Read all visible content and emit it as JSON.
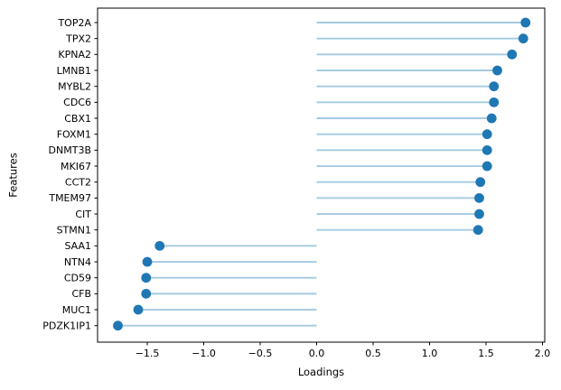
{
  "figure": {
    "background": "#ffffff"
  },
  "chart_data": {
    "type": "scatter",
    "variant": "horizontal-lollipop-stem",
    "title": "",
    "xlabel": "Loadings",
    "ylabel": "Features",
    "categories": [
      "TOP2A",
      "TPX2",
      "KPNA2",
      "LMNB1",
      "MYBL2",
      "CDC6",
      "CBX1",
      "FOXM1",
      "DNMT3B",
      "MKI67",
      "CCT2",
      "TMEM97",
      "CIT",
      "STMN1",
      "SAA1",
      "NTN4",
      "CD59",
      "CFB",
      "MUC1",
      "PDZK1IP1"
    ],
    "values": [
      1.85,
      1.83,
      1.73,
      1.6,
      1.57,
      1.57,
      1.55,
      1.51,
      1.51,
      1.51,
      1.45,
      1.44,
      1.44,
      1.43,
      -1.39,
      -1.5,
      -1.51,
      -1.51,
      -1.58,
      -1.76
    ],
    "stem_baseline": 0,
    "xlim": [
      -1.94,
      2.02
    ],
    "xticks": [
      -1.5,
      -1.0,
      -0.5,
      0.0,
      0.5,
      1.0,
      1.5,
      2.0
    ],
    "xtick_labels": [
      "−1.5",
      "−1.0",
      "−0.5",
      "0.0",
      "0.5",
      "1.0",
      "1.5",
      "2.0"
    ],
    "grid": false,
    "legend": null,
    "colors": {
      "marker": "#1f77b4",
      "stem": "#a5c9e1",
      "axis": "#000000",
      "text": "#000000"
    }
  }
}
